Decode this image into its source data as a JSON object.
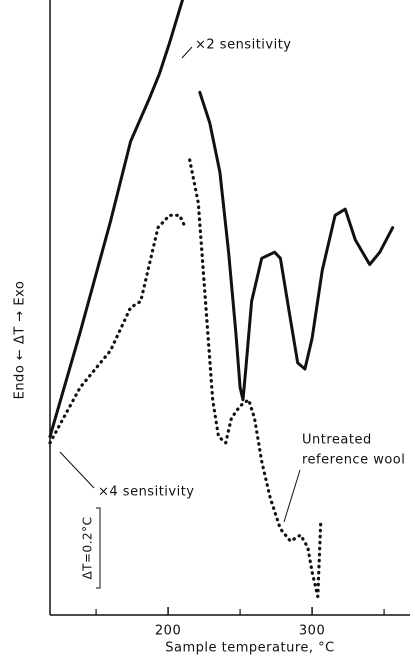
{
  "chart_data": {
    "type": "line",
    "xlabel": "Sample temperature, °C",
    "ylabel": "Endo ← ΔT → Exo",
    "scale_label": "ΔT=0.2°C",
    "xlim": [
      118,
      368
    ],
    "ylim": [
      0,
      100
    ],
    "xticks": [
      200,
      300
    ],
    "xminorticks": [
      150,
      250,
      350
    ],
    "annotations": [
      "Untreated",
      "reference wool"
    ],
    "series": [
      {
        "name": "×2 sensitivity",
        "color": "#111111",
        "style": "solid",
        "x": [
          118,
          139,
          160,
          174,
          187,
          194,
          201,
          210,
          216,
          222,
          229,
          236,
          242,
          247,
          250,
          252,
          254,
          258,
          265,
          274,
          278,
          285,
          290,
          295,
          300,
          307,
          316,
          323,
          330,
          340,
          347,
          356
        ],
        "values": [
          29,
          46,
          64,
          77,
          84,
          88,
          93,
          100,
          null,
          85,
          80,
          72,
          59,
          46,
          37,
          35,
          40,
          51,
          58,
          59,
          58,
          48,
          41,
          40,
          45,
          56,
          65,
          66,
          61,
          57,
          59,
          63
        ]
      },
      {
        "name": "×4 sensitivity",
        "color": "#111111",
        "style": "dotted",
        "x": [
          118,
          139,
          160,
          174,
          181,
          186,
          193,
          201,
          208,
          212,
          214,
          215,
          221,
          226,
          231,
          235,
          240,
          244,
          250,
          256,
          260,
          265,
          271,
          278,
          285,
          292,
          297,
          300,
          304,
          306
        ],
        "values": [
          28,
          37,
          43,
          50,
          51,
          56,
          63,
          65,
          65,
          63,
          null,
          74,
          67,
          51,
          35,
          29,
          28,
          32,
          34,
          35,
          32,
          25,
          19,
          14,
          12,
          13,
          11,
          7,
          3,
          15
        ]
      }
    ]
  }
}
